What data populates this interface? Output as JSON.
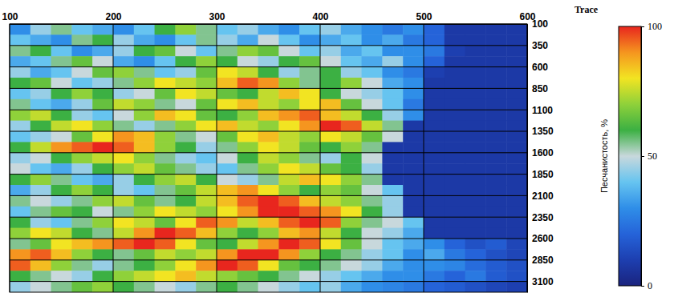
{
  "chart_data": {
    "type": "heatmap",
    "xlabel": "Trace",
    "x_bins": [
      100,
      120,
      140,
      160,
      180,
      200,
      220,
      240,
      260,
      280,
      300,
      320,
      340,
      360,
      380,
      400,
      420,
      440,
      460,
      480,
      500,
      520,
      540,
      560,
      580,
      600
    ],
    "y_bins": [
      100,
      225,
      350,
      475,
      600,
      725,
      850,
      975,
      1100,
      1225,
      1350,
      1475,
      1600,
      1725,
      1850,
      1975,
      2100,
      2225,
      2350,
      2475,
      2600,
      2725,
      2850,
      2975,
      3100,
      3225
    ],
    "values": [
      [
        30,
        45,
        55,
        40,
        35,
        30,
        40,
        60,
        70,
        55,
        40,
        45,
        35,
        30,
        40,
        45,
        35,
        30,
        25,
        30,
        20,
        8,
        8,
        8,
        8
      ],
      [
        40,
        35,
        30,
        55,
        60,
        45,
        35,
        30,
        40,
        55,
        45,
        35,
        50,
        40,
        30,
        35,
        40,
        30,
        35,
        25,
        20,
        8,
        8,
        8,
        8
      ],
      [
        55,
        60,
        40,
        30,
        35,
        45,
        60,
        65,
        50,
        40,
        55,
        70,
        65,
        50,
        40,
        45,
        35,
        40,
        30,
        30,
        25,
        10,
        8,
        8,
        8
      ],
      [
        35,
        40,
        55,
        65,
        50,
        35,
        30,
        40,
        60,
        70,
        60,
        50,
        45,
        60,
        65,
        50,
        40,
        35,
        45,
        30,
        20,
        8,
        8,
        8,
        8
      ],
      [
        45,
        35,
        40,
        50,
        65,
        70,
        55,
        40,
        45,
        65,
        80,
        75,
        60,
        45,
        55,
        60,
        45,
        40,
        30,
        25,
        10,
        8,
        8,
        8,
        8
      ],
      [
        60,
        65,
        50,
        40,
        45,
        55,
        70,
        80,
        75,
        70,
        85,
        95,
        90,
        70,
        55,
        60,
        70,
        50,
        35,
        30,
        8,
        8,
        8,
        8,
        8
      ],
      [
        40,
        45,
        60,
        70,
        60,
        45,
        50,
        65,
        80,
        75,
        65,
        60,
        75,
        85,
        80,
        60,
        50,
        45,
        40,
        30,
        8,
        8,
        8,
        8,
        8
      ],
      [
        55,
        40,
        35,
        45,
        65,
        75,
        70,
        55,
        50,
        65,
        80,
        85,
        75,
        70,
        80,
        85,
        65,
        50,
        40,
        25,
        8,
        8,
        8,
        8,
        8
      ],
      [
        70,
        75,
        60,
        45,
        40,
        50,
        70,
        85,
        80,
        65,
        60,
        70,
        85,
        90,
        95,
        85,
        75,
        60,
        45,
        30,
        8,
        8,
        8,
        8,
        8
      ],
      [
        45,
        60,
        75,
        80,
        70,
        55,
        45,
        55,
        70,
        80,
        85,
        75,
        70,
        80,
        90,
        100,
        95,
        75,
        55,
        8,
        8,
        8,
        8,
        8,
        8
      ],
      [
        40,
        45,
        50,
        65,
        80,
        90,
        85,
        70,
        55,
        50,
        65,
        80,
        85,
        75,
        70,
        80,
        75,
        65,
        50,
        8,
        8,
        8,
        8,
        8,
        8
      ],
      [
        60,
        75,
        90,
        95,
        100,
        95,
        85,
        70,
        60,
        45,
        55,
        70,
        80,
        75,
        65,
        60,
        70,
        55,
        8,
        8,
        8,
        8,
        8,
        8,
        8
      ],
      [
        45,
        50,
        60,
        70,
        75,
        80,
        70,
        55,
        45,
        40,
        50,
        60,
        75,
        70,
        55,
        45,
        60,
        50,
        8,
        8,
        8,
        8,
        8,
        8,
        8
      ],
      [
        50,
        40,
        35,
        45,
        60,
        70,
        75,
        65,
        55,
        45,
        40,
        55,
        70,
        80,
        75,
        65,
        60,
        45,
        8,
        8,
        8,
        8,
        8,
        8,
        8
      ],
      [
        60,
        70,
        55,
        40,
        35,
        45,
        60,
        70,
        75,
        60,
        50,
        45,
        55,
        75,
        85,
        80,
        70,
        55,
        8,
        8,
        8,
        8,
        8,
        8,
        8
      ],
      [
        35,
        45,
        60,
        70,
        60,
        45,
        40,
        55,
        65,
        75,
        85,
        90,
        80,
        70,
        60,
        70,
        65,
        50,
        40,
        8,
        8,
        8,
        8,
        8,
        8
      ],
      [
        55,
        50,
        45,
        55,
        70,
        75,
        65,
        55,
        60,
        75,
        85,
        95,
        100,
        95,
        85,
        75,
        70,
        55,
        45,
        8,
        8,
        8,
        8,
        8,
        8
      ],
      [
        40,
        55,
        65,
        60,
        50,
        55,
        70,
        80,
        75,
        70,
        80,
        90,
        100,
        100,
        95,
        90,
        80,
        60,
        45,
        8,
        8,
        8,
        8,
        8,
        8
      ],
      [
        60,
        45,
        40,
        55,
        70,
        80,
        75,
        65,
        80,
        95,
        90,
        75,
        85,
        95,
        100,
        95,
        70,
        55,
        50,
        40,
        8,
        8,
        8,
        8,
        8
      ],
      [
        70,
        80,
        75,
        60,
        55,
        75,
        90,
        100,
        95,
        85,
        70,
        60,
        70,
        85,
        90,
        75,
        60,
        50,
        45,
        35,
        8,
        8,
        8,
        8,
        8
      ],
      [
        55,
        65,
        80,
        85,
        90,
        95,
        100,
        95,
        80,
        65,
        60,
        75,
        90,
        100,
        95,
        80,
        65,
        50,
        40,
        35,
        30,
        20,
        15,
        18,
        12
      ],
      [
        90,
        95,
        85,
        70,
        60,
        55,
        65,
        75,
        70,
        75,
        90,
        100,
        100,
        90,
        70,
        60,
        55,
        45,
        40,
        30,
        35,
        25,
        20,
        15,
        12
      ],
      [
        95,
        85,
        70,
        55,
        45,
        55,
        60,
        70,
        80,
        90,
        100,
        95,
        80,
        65,
        60,
        55,
        50,
        45,
        35,
        30,
        30,
        28,
        22,
        18,
        15
      ],
      [
        60,
        55,
        50,
        45,
        60,
        70,
        75,
        80,
        85,
        75,
        70,
        65,
        60,
        55,
        50,
        45,
        40,
        35,
        30,
        30,
        25,
        20,
        25,
        18,
        15
      ],
      [
        45,
        50,
        55,
        65,
        70,
        60,
        55,
        50,
        45,
        55,
        60,
        55,
        50,
        45,
        40,
        45,
        35,
        30,
        28,
        25,
        20,
        18,
        15,
        12,
        10
      ]
    ],
    "xlim": [
      100,
      600
    ],
    "ylim": [
      100,
      3225
    ],
    "xticks": [
      100,
      200,
      300,
      400,
      500,
      600
    ],
    "yticks": [
      100,
      350,
      600,
      850,
      1100,
      1350,
      1600,
      1850,
      2100,
      2350,
      2600,
      2850,
      3100
    ],
    "grid": true,
    "colorbar": {
      "range": [
        0,
        100
      ],
      "ticks": [
        0,
        50,
        100
      ],
      "label": "Песчанистость, %"
    }
  }
}
